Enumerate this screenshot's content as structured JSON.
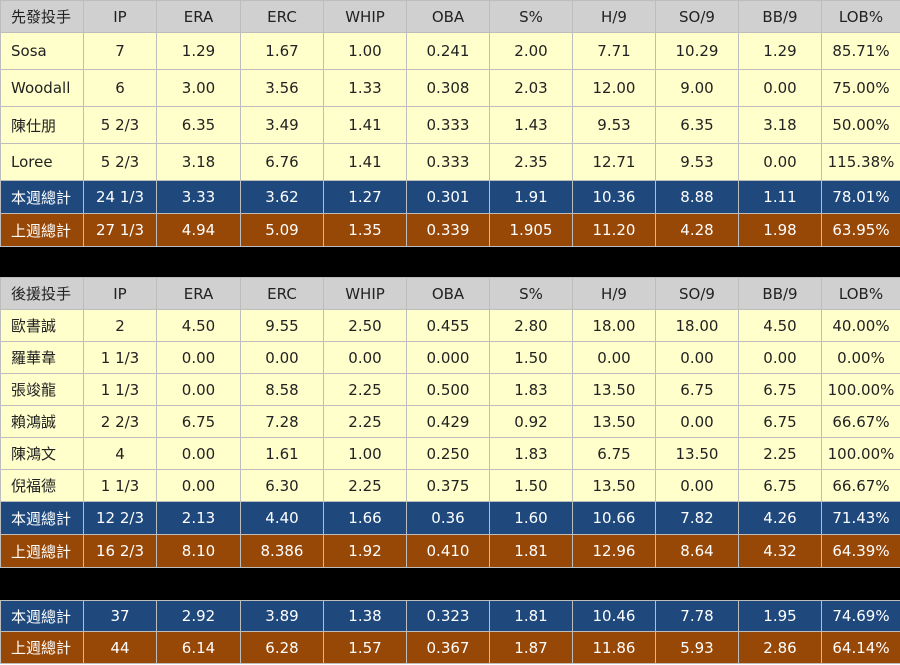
{
  "starters": {
    "headers": [
      "先發投手",
      "IP",
      "ERA",
      "ERC",
      "WHIP",
      "OBA",
      "S%",
      "H/9",
      "SO/9",
      "BB/9",
      "LOB%"
    ],
    "rows": [
      [
        "Sosa",
        "7",
        "1.29",
        "1.67",
        "1.00",
        "0.241",
        "2.00",
        "7.71",
        "10.29",
        "1.29",
        "85.71%"
      ],
      [
        "Woodall",
        "6",
        "3.00",
        "3.56",
        "1.33",
        "0.308",
        "2.03",
        "12.00",
        "9.00",
        "0.00",
        "75.00%"
      ],
      [
        "陳仕朋",
        "5 2/3",
        "6.35",
        "3.49",
        "1.41",
        "0.333",
        "1.43",
        "9.53",
        "6.35",
        "3.18",
        "50.00%"
      ],
      [
        "Loree",
        "5 2/3",
        "3.18",
        "6.76",
        "1.41",
        "0.333",
        "2.35",
        "12.71",
        "9.53",
        "0.00",
        "115.38%"
      ]
    ],
    "this_week": [
      "本週總計",
      "24 1/3",
      "3.33",
      "3.62",
      "1.27",
      "0.301",
      "1.91",
      "10.36",
      "8.88",
      "1.11",
      "78.01%"
    ],
    "last_week": [
      "上週總計",
      "27 1/3",
      "4.94",
      "5.09",
      "1.35",
      "0.339",
      "1.905",
      "11.20",
      "4.28",
      "1.98",
      "63.95%"
    ]
  },
  "relievers": {
    "headers": [
      "後援投手",
      "IP",
      "ERA",
      "ERC",
      "WHIP",
      "OBA",
      "S%",
      "H/9",
      "SO/9",
      "BB/9",
      "LOB%"
    ],
    "rows": [
      [
        "歐書誠",
        "2",
        "4.50",
        "9.55",
        "2.50",
        "0.455",
        "2.80",
        "18.00",
        "18.00",
        "4.50",
        "40.00%"
      ],
      [
        "羅華韋",
        "1 1/3",
        "0.00",
        "0.00",
        "0.00",
        "0.000",
        "1.50",
        "0.00",
        "0.00",
        "0.00",
        "0.00%"
      ],
      [
        "張竣龍",
        "1 1/3",
        "0.00",
        "8.58",
        "2.25",
        "0.500",
        "1.83",
        "13.50",
        "6.75",
        "6.75",
        "100.00%"
      ],
      [
        "賴鴻誠",
        "2 2/3",
        "6.75",
        "7.28",
        "2.25",
        "0.429",
        "0.92",
        "13.50",
        "0.00",
        "6.75",
        "66.67%"
      ],
      [
        "陳鴻文",
        "4",
        "0.00",
        "1.61",
        "1.00",
        "0.250",
        "1.83",
        "6.75",
        "13.50",
        "2.25",
        "100.00%"
      ],
      [
        "倪福德",
        "1 1/3",
        "0.00",
        "6.30",
        "2.25",
        "0.375",
        "1.50",
        "13.50",
        "0.00",
        "6.75",
        "66.67%"
      ]
    ],
    "this_week": [
      "本週總計",
      "12 2/3",
      "2.13",
      "4.40",
      "1.66",
      "0.36",
      "1.60",
      "10.66",
      "7.82",
      "4.26",
      "71.43%"
    ],
    "last_week": [
      "上週總計",
      "16 2/3",
      "8.10",
      "8.386",
      "1.92",
      "0.410",
      "1.81",
      "12.96",
      "8.64",
      "4.32",
      "64.39%"
    ]
  },
  "overall": {
    "this_week": [
      "本週總計",
      "37",
      "2.92",
      "3.89",
      "1.38",
      "0.323",
      "1.81",
      "10.46",
      "7.78",
      "1.95",
      "74.69%"
    ],
    "last_week": [
      "上週總計",
      "44",
      "6.14",
      "6.28",
      "1.57",
      "0.367",
      "1.87",
      "11.86",
      "5.93",
      "2.86",
      "64.14%"
    ]
  },
  "colors": {
    "header_bg": "#d0d0d0",
    "row_bg": "#ffffcc",
    "this_week_bg": "#1f497d",
    "last_week_bg": "#974706",
    "separator_bg": "#000000"
  }
}
